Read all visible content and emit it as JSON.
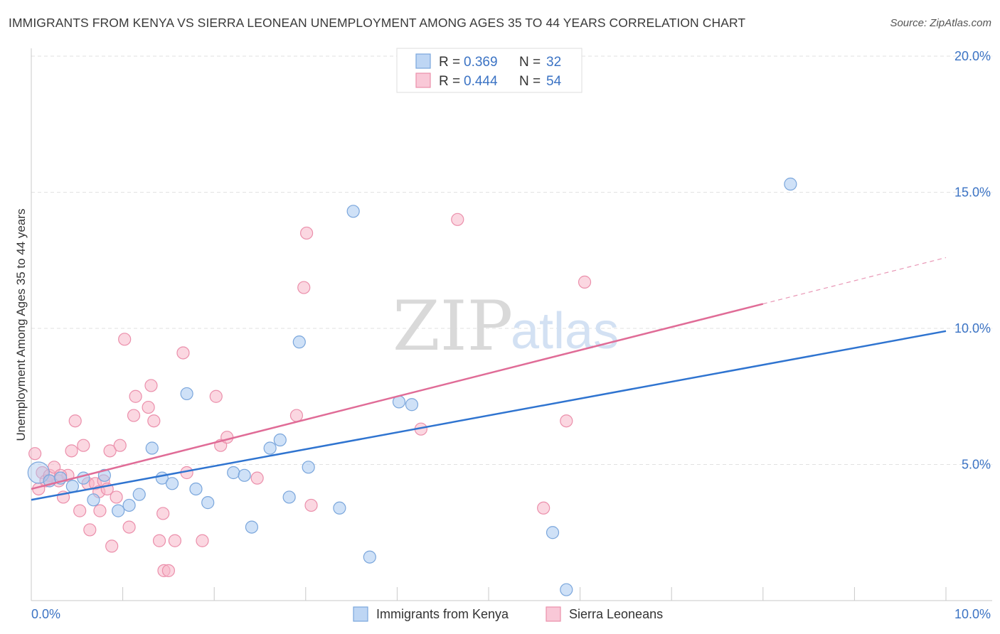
{
  "title": "IMMIGRANTS FROM KENYA VS SIERRA LEONEAN UNEMPLOYMENT AMONG AGES 35 TO 44 YEARS CORRELATION CHART",
  "source": "Source: ZipAtlas.com",
  "watermark": {
    "zip": "ZIP",
    "atlas": "atlas"
  },
  "legend": {
    "rows": [
      {
        "r_label": "R =",
        "r_value": "0.369",
        "n_label": "N =",
        "n_value": "32",
        "color": "#a8c8f0"
      },
      {
        "r_label": "R =",
        "r_value": "0.444",
        "n_label": "N =",
        "n_value": "54",
        "color": "#f7b6c9"
      }
    ]
  },
  "chart_data": {
    "type": "scatter",
    "xlabel": "",
    "ylabel": "Unemployment Among Ages 35 to 44 years",
    "xlim": [
      0,
      10
    ],
    "ylim": [
      0,
      20
    ],
    "x_tick_labels": [
      {
        "value": 0,
        "label": "0.0%"
      },
      {
        "value": 10,
        "label": "10.0%"
      }
    ],
    "y_tick_labels": [
      {
        "value": 5,
        "label": "5.0%"
      },
      {
        "value": 10,
        "label": "10.0%"
      },
      {
        "value": 15,
        "label": "15.0%"
      },
      {
        "value": 20,
        "label": "20.0%"
      }
    ],
    "series": [
      {
        "name": "Immigrants from Kenya",
        "color": "#a8c8f0",
        "stroke": "#7aa6dc",
        "line_color": "#2f74d0",
        "trend": {
          "x0": 0,
          "y0": 3.7,
          "x1": 10,
          "y1": 9.9
        },
        "points": [
          {
            "x": 0.08,
            "y": 4.7,
            "big": true
          },
          {
            "x": 0.2,
            "y": 4.4
          },
          {
            "x": 0.32,
            "y": 4.5
          },
          {
            "x": 0.45,
            "y": 4.2
          },
          {
            "x": 0.57,
            "y": 4.5
          },
          {
            "x": 0.68,
            "y": 3.7
          },
          {
            "x": 0.8,
            "y": 4.6
          },
          {
            "x": 0.95,
            "y": 3.3
          },
          {
            "x": 1.07,
            "y": 3.5
          },
          {
            "x": 1.18,
            "y": 3.9
          },
          {
            "x": 1.32,
            "y": 5.6
          },
          {
            "x": 1.43,
            "y": 4.5
          },
          {
            "x": 1.54,
            "y": 4.3
          },
          {
            "x": 1.7,
            "y": 7.6
          },
          {
            "x": 1.8,
            "y": 4.1
          },
          {
            "x": 1.93,
            "y": 3.6
          },
          {
            "x": 2.21,
            "y": 4.7
          },
          {
            "x": 2.33,
            "y": 4.6
          },
          {
            "x": 2.41,
            "y": 2.7
          },
          {
            "x": 2.61,
            "y": 5.6
          },
          {
            "x": 2.72,
            "y": 5.9
          },
          {
            "x": 2.82,
            "y": 3.8
          },
          {
            "x": 2.93,
            "y": 9.5
          },
          {
            "x": 3.03,
            "y": 4.9
          },
          {
            "x": 3.37,
            "y": 3.4
          },
          {
            "x": 3.52,
            "y": 14.3
          },
          {
            "x": 3.7,
            "y": 1.6
          },
          {
            "x": 4.02,
            "y": 7.3
          },
          {
            "x": 4.16,
            "y": 7.2
          },
          {
            "x": 5.7,
            "y": 2.5
          },
          {
            "x": 5.85,
            "y": 0.4
          },
          {
            "x": 8.3,
            "y": 15.3
          }
        ]
      },
      {
        "name": "Sierra Leoneans",
        "color": "#f7b6c9",
        "stroke": "#eb8fab",
        "line_color": "#e06c97",
        "trend": {
          "x0": 0,
          "y0": 4.1,
          "x1": 8.0,
          "y1": 10.9
        },
        "trend_extension": {
          "x0": 8.0,
          "y0": 10.9,
          "x1": 10.0,
          "y1": 12.6
        },
        "points": [
          {
            "x": 0.04,
            "y": 5.4
          },
          {
            "x": 0.08,
            "y": 4.1
          },
          {
            "x": 0.12,
            "y": 4.7
          },
          {
            "x": 0.16,
            "y": 4.4
          },
          {
            "x": 0.2,
            "y": 4.6
          },
          {
            "x": 0.25,
            "y": 4.9
          },
          {
            "x": 0.3,
            "y": 4.4
          },
          {
            "x": 0.35,
            "y": 3.8
          },
          {
            "x": 0.4,
            "y": 4.6
          },
          {
            "x": 0.44,
            "y": 5.5
          },
          {
            "x": 0.48,
            "y": 6.6
          },
          {
            "x": 0.53,
            "y": 3.3
          },
          {
            "x": 0.57,
            "y": 5.7
          },
          {
            "x": 0.62,
            "y": 4.3
          },
          {
            "x": 0.64,
            "y": 2.6
          },
          {
            "x": 0.7,
            "y": 4.3
          },
          {
            "x": 0.74,
            "y": 4.0
          },
          {
            "x": 0.75,
            "y": 3.3
          },
          {
            "x": 0.79,
            "y": 4.4
          },
          {
            "x": 0.83,
            "y": 4.1
          },
          {
            "x": 0.86,
            "y": 5.5
          },
          {
            "x": 0.88,
            "y": 2.0
          },
          {
            "x": 0.93,
            "y": 3.8
          },
          {
            "x": 0.97,
            "y": 5.7
          },
          {
            "x": 1.02,
            "y": 9.6
          },
          {
            "x": 1.07,
            "y": 2.7
          },
          {
            "x": 1.12,
            "y": 6.8
          },
          {
            "x": 1.14,
            "y": 7.5
          },
          {
            "x": 1.28,
            "y": 7.1
          },
          {
            "x": 1.31,
            "y": 7.9
          },
          {
            "x": 1.34,
            "y": 6.6
          },
          {
            "x": 1.4,
            "y": 2.2
          },
          {
            "x": 1.44,
            "y": 3.2
          },
          {
            "x": 1.45,
            "y": 1.1
          },
          {
            "x": 1.5,
            "y": 1.1
          },
          {
            "x": 1.57,
            "y": 2.2
          },
          {
            "x": 1.66,
            "y": 9.1
          },
          {
            "x": 1.7,
            "y": 4.7
          },
          {
            "x": 1.87,
            "y": 2.2
          },
          {
            "x": 2.02,
            "y": 7.5
          },
          {
            "x": 2.07,
            "y": 5.7
          },
          {
            "x": 2.14,
            "y": 6.0
          },
          {
            "x": 2.47,
            "y": 4.5
          },
          {
            "x": 2.9,
            "y": 6.8
          },
          {
            "x": 2.98,
            "y": 11.5
          },
          {
            "x": 3.01,
            "y": 13.5
          },
          {
            "x": 3.06,
            "y": 3.5
          },
          {
            "x": 4.26,
            "y": 6.3
          },
          {
            "x": 4.66,
            "y": 14.0
          },
          {
            "x": 5.6,
            "y": 3.4
          },
          {
            "x": 5.85,
            "y": 6.6
          },
          {
            "x": 6.05,
            "y": 11.7
          },
          {
            "x": 0.2,
            "y": 4.4
          },
          {
            "x": 0.32,
            "y": 4.6
          }
        ]
      }
    ],
    "legend_position": "bottom-center",
    "grid": true
  }
}
